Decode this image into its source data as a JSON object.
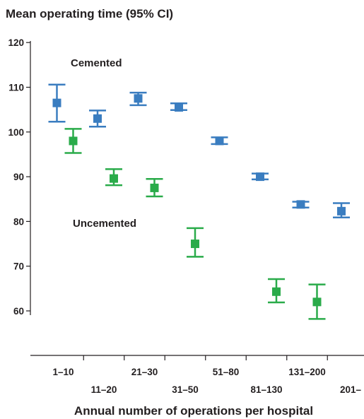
{
  "chart_data": {
    "type": "scatter",
    "title": "Mean operating time (95% CI)",
    "xlabel": "Annual number of operations per hospital",
    "ylabel": "",
    "categories": [
      "1–10",
      "11–20",
      "21–30",
      "31–50",
      "51–80",
      "81–130",
      "131–200",
      "201–"
    ],
    "ylim": [
      56,
      122
    ],
    "yticks": [
      60,
      70,
      80,
      90,
      100,
      110,
      120
    ],
    "grid": false,
    "legend": "none",
    "series": [
      {
        "name": "Cemented",
        "color": "#3a7dc0",
        "x_categories": [
          "1–10",
          "11–20",
          "21–30",
          "31–50",
          "51–80",
          "81–130",
          "131–200",
          "201–"
        ],
        "values": [
          106.5,
          103,
          107.5,
          105.5,
          98,
          90,
          83.8,
          82.3
        ],
        "lower": [
          102.3,
          101.2,
          106,
          104.9,
          97.3,
          89.4,
          83.1,
          80.9
        ],
        "upper": [
          110.6,
          104.8,
          108.8,
          106.4,
          98.8,
          90.7,
          84.4,
          84.1
        ]
      },
      {
        "name": "Uncemented",
        "color": "#2aab4a",
        "x_categories": [
          "1–10",
          "11–20",
          "21–30",
          "31–50",
          "51–80",
          "81–130",
          "131–200",
          "201–"
        ],
        "values": [
          98,
          89.6,
          87.5,
          75,
          null,
          64.3,
          62,
          null
        ],
        "lower": [
          95.3,
          88.1,
          85.6,
          72.1,
          null,
          61.9,
          58.2,
          null
        ],
        "upper": [
          100.7,
          91.7,
          89.5,
          78.5,
          null,
          67.1,
          65.9,
          null
        ]
      }
    ],
    "annotations": [
      {
        "text": "Cemented",
        "series": "Cemented"
      },
      {
        "text": "Uncemented",
        "series": "Uncemented"
      }
    ]
  }
}
